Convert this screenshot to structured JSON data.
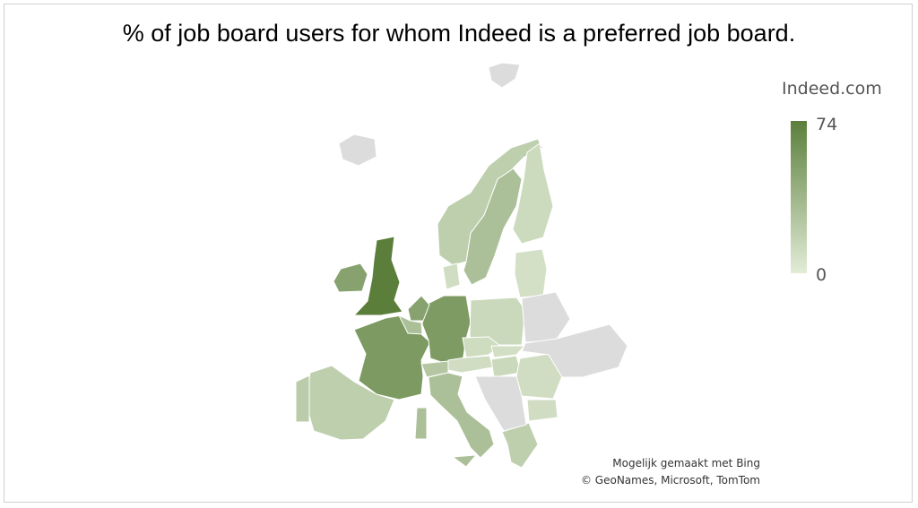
{
  "chart_data": {
    "type": "choropleth",
    "title": "% of job board users for whom Indeed is a preferred job board.",
    "legend": {
      "title": "Indeed.com",
      "min": 0,
      "max": 74,
      "placement": "right"
    },
    "colors": {
      "min": "#e2ecd7",
      "max": "#5b7f3b",
      "no_data": "#dcdcdc"
    },
    "regions": [
      {
        "name": "United Kingdom",
        "value": 74
      },
      {
        "name": "France",
        "value": 56
      },
      {
        "name": "Germany",
        "value": 55
      },
      {
        "name": "Netherlands",
        "value": 50
      },
      {
        "name": "Ireland",
        "value": 50
      },
      {
        "name": "Belgium",
        "value": 30
      },
      {
        "name": "Switzerland",
        "value": 25
      },
      {
        "name": "Italy",
        "value": 30
      },
      {
        "name": "Spain",
        "value": 20
      },
      {
        "name": "Portugal",
        "value": 22
      },
      {
        "name": "Sweden",
        "value": 30
      },
      {
        "name": "Norway",
        "value": 20
      },
      {
        "name": "Finland",
        "value": 12
      },
      {
        "name": "Denmark",
        "value": 10
      },
      {
        "name": "Baltics",
        "value": 8
      },
      {
        "name": "Poland",
        "value": 13
      },
      {
        "name": "Czechia",
        "value": 11
      },
      {
        "name": "Slovakia",
        "value": 9
      },
      {
        "name": "Austria",
        "value": 10
      },
      {
        "name": "Hungary",
        "value": 13
      },
      {
        "name": "Romania",
        "value": 10
      },
      {
        "name": "Bulgaria",
        "value": 10
      },
      {
        "name": "Greece",
        "value": 20
      },
      {
        "name": "Iceland",
        "value": null
      },
      {
        "name": "Svalbard",
        "value": null
      },
      {
        "name": "Belarus",
        "value": null
      },
      {
        "name": "Ukraine",
        "value": null
      },
      {
        "name": "Western Balkans",
        "value": null
      }
    ],
    "attribution": [
      "Mogelijk gemaakt met Bing",
      "© GeoNames, Microsoft, TomTom"
    ]
  }
}
